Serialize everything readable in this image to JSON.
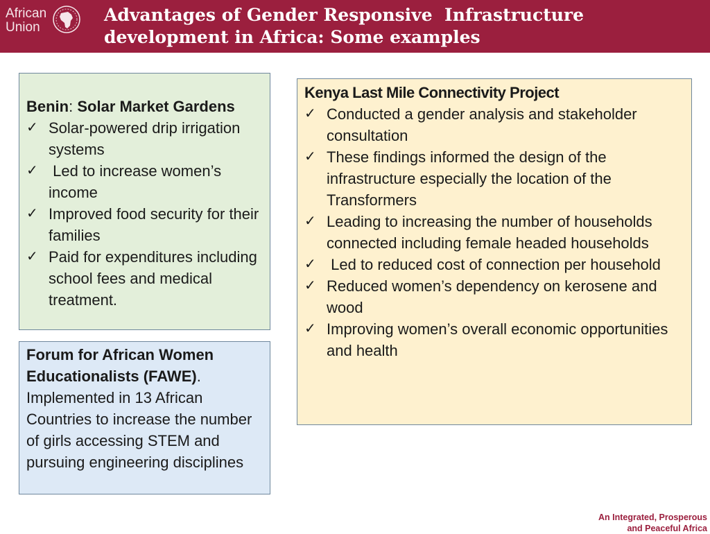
{
  "logo": {
    "line1": "African",
    "line2": "Union"
  },
  "title": {
    "line1": "Advantages of Gender Responsive  Infrastructure",
    "line2": "development in Africa: Some examples"
  },
  "benin": {
    "country": "Benin",
    "separator": ": ",
    "project": "Solar Market Gardens",
    "items": [
      "Solar-powered drip irrigation systems",
      " Led to increase women’s income",
      "Improved food security for their families",
      "Paid for expenditures including school fees and medical treatment."
    ]
  },
  "fawe": {
    "name": "Forum for African Women Educationalists (FAWE)",
    "period": ".",
    "description": "Implemented in 13 African Countries to increase the number of girls accessing STEM and pursuing engineering disciplines"
  },
  "kenya": {
    "heading": "Kenya Last Mile Connectivity Project",
    "items": [
      "Conducted a gender analysis and stakeholder consultation",
      "These findings informed the design of the infrastructure especially the location of the Transformers",
      "Leading to increasing the number of households connected including female headed households",
      " Led to reduced cost of connection per household",
      "Reduced women’s dependency on kerosene and wood",
      "Improving women’s overall economic opportunities and health"
    ]
  },
  "check_glyph": "✓",
  "footer": {
    "line1": "An Integrated, Prosperous",
    "line2": "and Peaceful Africa"
  },
  "colors": {
    "header": "#9b1f3e",
    "benin_fill": "#e3efda",
    "fawe_fill": "#dde9f6",
    "kenya_fill": "#fef1cf",
    "footer_text": "#9b1f3e"
  }
}
